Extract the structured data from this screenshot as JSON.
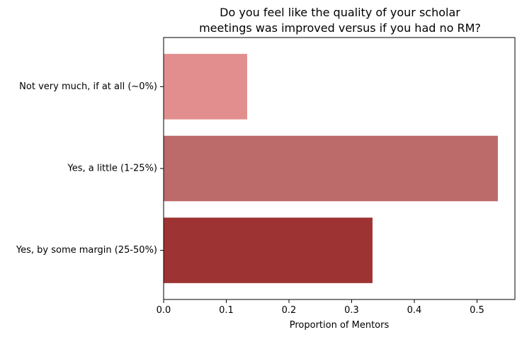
{
  "chart_data": {
    "type": "bar",
    "orientation": "horizontal",
    "title_lines": [
      "Do you feel like the quality of your scholar",
      "meetings was improved versus if you had no RM?"
    ],
    "xlabel": "Proportion of Mentors",
    "ylabel": "",
    "categories": [
      "Not very much, if at all (~0%)",
      "Yes, a little (1-25%)",
      "Yes, by some margin (25-50%)"
    ],
    "values": [
      0.1333,
      0.5333,
      0.3333
    ],
    "colors": [
      "#e28e8e",
      "#bd6a6a",
      "#9e3333"
    ],
    "xlim": [
      0,
      0.5605
    ],
    "xticks": [
      0.0,
      0.1,
      0.2,
      0.3,
      0.4,
      0.5
    ],
    "xtick_labels": [
      "0.0",
      "0.1",
      "0.2",
      "0.3",
      "0.4",
      "0.5"
    ],
    "grid": false,
    "legend": "none"
  }
}
